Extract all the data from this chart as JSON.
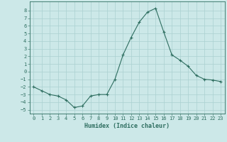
{
  "xlabel": "Humidex (Indice chaleur)",
  "ylabel": "",
  "x": [
    0,
    1,
    2,
    3,
    4,
    5,
    6,
    7,
    8,
    9,
    10,
    11,
    12,
    13,
    14,
    15,
    16,
    17,
    18,
    19,
    20,
    21,
    22,
    23
  ],
  "y": [
    -2,
    -2.5,
    -3,
    -3.2,
    -3.7,
    -4.7,
    -4.5,
    -3.2,
    -3,
    -3,
    -1,
    2.2,
    4.5,
    6.5,
    7.8,
    8.3,
    5.2,
    2.2,
    1.5,
    0.7,
    -0.5,
    -1.0,
    -1.1,
    -1.3
  ],
  "ylim": [
    -5.5,
    9.2
  ],
  "xlim": [
    -0.5,
    23.5
  ],
  "yticks": [
    -5,
    -4,
    -3,
    -2,
    -1,
    0,
    1,
    2,
    3,
    4,
    5,
    6,
    7,
    8
  ],
  "xticks": [
    0,
    1,
    2,
    3,
    4,
    5,
    6,
    7,
    8,
    9,
    10,
    11,
    12,
    13,
    14,
    15,
    16,
    17,
    18,
    19,
    20,
    21,
    22,
    23
  ],
  "line_color": "#2e6e60",
  "marker": "+",
  "marker_size": 3,
  "bg_color": "#cce8e8",
  "grid_color": "#aad0d0",
  "tick_fontsize": 5,
  "label_fontsize": 6,
  "figsize": [
    3.2,
    2.0
  ],
  "dpi": 100
}
